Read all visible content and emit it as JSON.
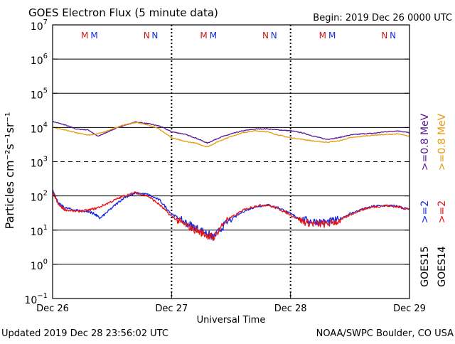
{
  "header": {
    "title": "GOES Electron Flux (5 minute data)",
    "begin": "Begin: 2019 Dec 26 0000 UTC"
  },
  "footer": {
    "updated": "Updated 2019 Dec 28 23:56:02 UTC",
    "source": "NOAA/SWPC Boulder, CO USA"
  },
  "colors": {
    "goes15_gt08": "#5a1896",
    "goes14_gt08": "#e89a10",
    "goes15_gt2": "#1428e6",
    "goes14_gt2": "#e61414",
    "marker_m": "#cc1414",
    "marker_n": "#1428e6"
  },
  "markers": [
    {
      "text": "M",
      "day": 0.27,
      "color": "#cc1414"
    },
    {
      "text": "M",
      "day": 0.35,
      "color": "#1428e6"
    },
    {
      "text": "N",
      "day": 0.79,
      "color": "#cc1414"
    },
    {
      "text": "N",
      "day": 0.86,
      "color": "#1428e6"
    },
    {
      "text": "M",
      "day": 1.27,
      "color": "#cc1414"
    },
    {
      "text": "M",
      "day": 1.35,
      "color": "#1428e6"
    },
    {
      "text": "N",
      "day": 1.79,
      "color": "#cc1414"
    },
    {
      "text": "N",
      "day": 1.86,
      "color": "#1428e6"
    },
    {
      "text": "M",
      "day": 2.27,
      "color": "#cc1414"
    },
    {
      "text": "M",
      "day": 2.35,
      "color": "#1428e6"
    },
    {
      "text": "N",
      "day": 2.79,
      "color": "#cc1414"
    },
    {
      "text": "N",
      "day": 2.86,
      "color": "#1428e6"
    }
  ],
  "legend": {
    "gt08": ">=0.8 MeV",
    "gt2": ">=2",
    "goes15": "GOES15",
    "goes14": "GOES14"
  },
  "chart_data": {
    "type": "line",
    "ylabel": "Particles cm⁻²s⁻¹sr⁻¹",
    "xlabel": "Universal Time",
    "x_unit": "days since 2019 Dec 26 0000 UTC",
    "xlim": [
      0,
      3
    ],
    "x_ticks": [
      {
        "value": 0,
        "label": "Dec 26"
      },
      {
        "value": 1,
        "label": "Dec 27"
      },
      {
        "value": 2,
        "label": "Dec 28"
      },
      {
        "value": 3,
        "label": "Dec 29"
      }
    ],
    "y_scale": "log",
    "ylim_exp": [
      -1,
      7
    ],
    "y_ticks": [
      {
        "exp": 7,
        "base": "10",
        "sup": "7"
      },
      {
        "exp": 6,
        "base": "10",
        "sup": "6"
      },
      {
        "exp": 5,
        "base": "10",
        "sup": "5"
      },
      {
        "exp": 4,
        "base": "10",
        "sup": "4"
      },
      {
        "exp": 3,
        "base": "10",
        "sup": "3"
      },
      {
        "exp": 2,
        "base": "10",
        "sup": "2"
      },
      {
        "exp": 1,
        "base": "10",
        "sup": "1"
      },
      {
        "exp": 0,
        "base": "10",
        "sup": "0"
      },
      {
        "exp": -1,
        "base": "10",
        "sup": "−1"
      }
    ],
    "dashed_levels_exp": [
      3
    ],
    "series": [
      {
        "name": "GOES15 >=0.8 MeV",
        "color": "#5a1896",
        "x": [
          0,
          0.1,
          0.2,
          0.3,
          0.38,
          0.5,
          0.6,
          0.7,
          0.8,
          0.9,
          1.0,
          1.1,
          1.2,
          1.3,
          1.4,
          1.5,
          1.6,
          1.7,
          1.8,
          1.9,
          2.0,
          2.1,
          2.2,
          2.3,
          2.4,
          2.5,
          2.6,
          2.7,
          2.8,
          2.9,
          3.0
        ],
        "y": [
          15000,
          12000,
          9000,
          8500,
          5500,
          8500,
          11500,
          14500,
          13000,
          11000,
          7500,
          6500,
          5000,
          3500,
          5000,
          6500,
          8000,
          9000,
          9200,
          8500,
          8000,
          7000,
          5500,
          4500,
          5000,
          6000,
          6500,
          6800,
          7500,
          8000,
          7000
        ]
      },
      {
        "name": "GOES14 >=0.8 MeV",
        "color": "#e89a10",
        "x": [
          0,
          0.1,
          0.2,
          0.3,
          0.38,
          0.5,
          0.6,
          0.7,
          0.8,
          0.9,
          1.0,
          1.1,
          1.2,
          1.3,
          1.4,
          1.5,
          1.6,
          1.7,
          1.8,
          1.9,
          2.0,
          2.1,
          2.2,
          2.3,
          2.4,
          2.5,
          2.6,
          2.7,
          2.8,
          2.9,
          3.0
        ],
        "y": [
          10000,
          8500,
          7000,
          6000,
          6500,
          9000,
          12000,
          14000,
          12000,
          9000,
          5000,
          4000,
          3500,
          2700,
          4000,
          5500,
          7000,
          8000,
          7500,
          6000,
          5000,
          4500,
          4000,
          3700,
          4000,
          5000,
          5500,
          6000,
          6200,
          6500,
          5500
        ]
      },
      {
        "name": "GOES15 >=2",
        "color": "#1428e6",
        "x": [
          0,
          0.05,
          0.1,
          0.2,
          0.3,
          0.35,
          0.4,
          0.5,
          0.6,
          0.7,
          0.8,
          0.9,
          1.0,
          1.1,
          1.2,
          1.3,
          1.35,
          1.45,
          1.6,
          1.7,
          1.8,
          1.9,
          2.0,
          2.1,
          2.2,
          2.3,
          2.4,
          2.5,
          2.6,
          2.7,
          2.8,
          2.9,
          3.0
        ],
        "y": [
          150,
          60,
          45,
          38,
          35,
          30,
          22,
          45,
          90,
          120,
          110,
          75,
          30,
          18,
          12,
          8,
          6,
          15,
          35,
          48,
          55,
          45,
          30,
          20,
          18,
          17,
          20,
          30,
          40,
          50,
          52,
          50,
          40
        ]
      },
      {
        "name": "GOES14 >=2",
        "color": "#e61414",
        "x": [
          0,
          0.05,
          0.1,
          0.2,
          0.3,
          0.38,
          0.5,
          0.6,
          0.7,
          0.8,
          0.9,
          1.0,
          1.1,
          1.2,
          1.3,
          1.35,
          1.45,
          1.6,
          1.7,
          1.8,
          1.9,
          2.0,
          2.1,
          2.2,
          2.3,
          2.4,
          2.5,
          2.6,
          2.7,
          2.8,
          2.9,
          3.0
        ],
        "y": [
          130,
          55,
          40,
          35,
          38,
          45,
          70,
          100,
          125,
          100,
          55,
          25,
          15,
          10,
          7,
          6,
          18,
          38,
          50,
          55,
          42,
          28,
          18,
          15,
          15,
          18,
          28,
          40,
          48,
          52,
          48,
          40
        ]
      }
    ]
  }
}
